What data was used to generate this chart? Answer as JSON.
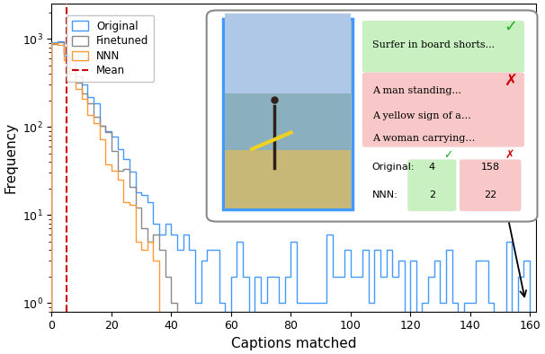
{
  "title": "",
  "xlabel": "Captions matched",
  "ylabel": "Frequency",
  "xlim": [
    0,
    162
  ],
  "mean_line": 5.0,
  "legend_labels": [
    "Original",
    "Finetuned",
    "NNN",
    "Mean"
  ],
  "legend_colors": [
    "#4499ff",
    "#888888",
    "#ff9933",
    "#cc0000"
  ],
  "inset_texts": {
    "correct_caption": "Surfer in board shorts...",
    "wrong_captions": [
      "A man standing...",
      "A yellow sign of a…",
      "A woman carrying…"
    ],
    "original_rank_correct": "4",
    "original_rank_wrong": "158",
    "nnn_rank_correct": "2",
    "nnn_rank_wrong": "22"
  },
  "green_bg": "#c8f0c0",
  "red_bg": "#f8c8c8",
  "green_check_color": "#22aa22",
  "red_x_color": "#cc0000",
  "inset_border_color": "#888888",
  "img_border_color": "#4499ff",
  "img_bg_color": "#b8c8a8"
}
